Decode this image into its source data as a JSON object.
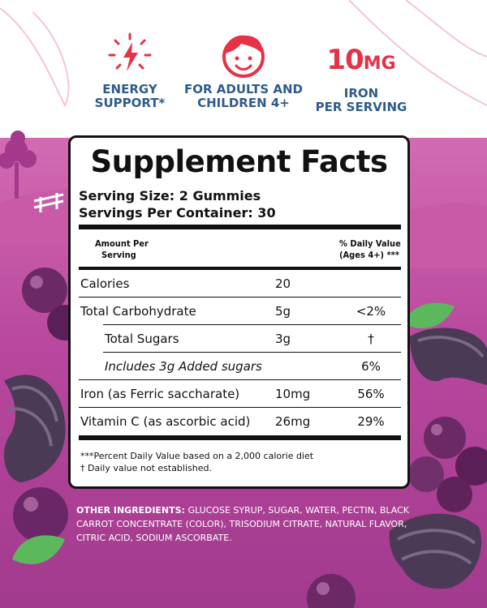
{
  "features": [
    {
      "label_line1": "ENERGY",
      "label_line2": "SUPPORT*",
      "icon": "lightning-icon"
    },
    {
      "label_line1": "FOR ADULTS AND",
      "label_line2": "CHILDREN 4+",
      "icon": "child-face-icon"
    },
    {
      "big_number": "10",
      "big_unit": "MG",
      "label_line1": "IRON",
      "label_line2": "PER SERVING"
    }
  ],
  "facts": {
    "title": "Supplement Facts",
    "serving_size": "Serving Size: 2 Gummies",
    "servings_per_container": "Servings Per Container: 30",
    "header_left_1": "Amount Per",
    "header_left_2": "Serving",
    "header_right_1": "% Daily Value",
    "header_right_2": "(Ages 4+) ***",
    "rows": [
      {
        "name": "Calories",
        "amount": "20",
        "dv": ""
      },
      {
        "name": "Total Carbohydrate",
        "amount": "5g",
        "dv": "<2%"
      },
      {
        "name": "Total Sugars",
        "amount": "3g",
        "dv": "†"
      },
      {
        "name": "Includes 3g Added sugars",
        "amount": "",
        "dv": "6%"
      },
      {
        "name": "Iron (as Ferric saccharate)",
        "amount": "10mg",
        "dv": "56%"
      },
      {
        "name": "Vitamin C (as ascorbic acid)",
        "amount": "26mg",
        "dv": "29%"
      }
    ],
    "footnote_1": "***Percent Daily Value based on a 2,000 calorie diet",
    "footnote_2": "† Daily value not established."
  },
  "ingredients": {
    "label": "OTHER INGREDIENTS:",
    "text": " GLUCOSE SYRUP, SUGAR, WATER, PECTIN, BLACK CARROT CONCENTRATE (COLOR), TRISODIUM CITRATE, NATURAL FLAVOR, CITRIC ACID, SODIUM ASCORBATE."
  },
  "colors": {
    "accent_red": "#e63146",
    "label_blue": "#2f5c8a",
    "background_purple": "#b8479d"
  }
}
